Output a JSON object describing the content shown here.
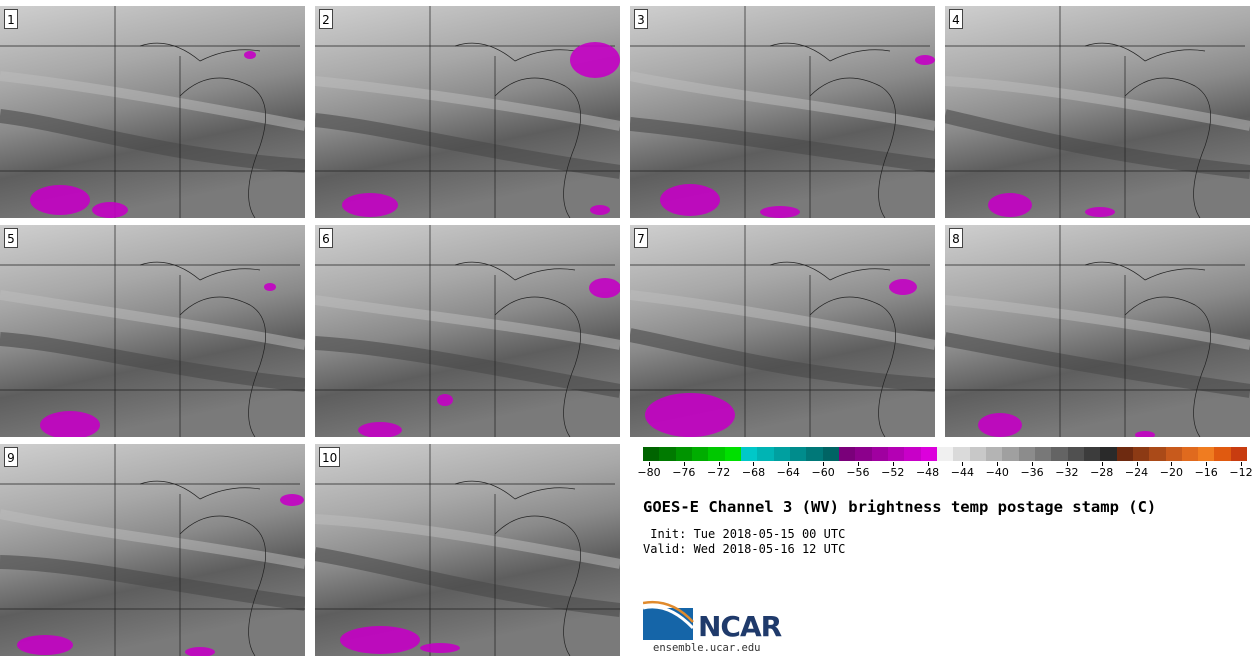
{
  "panels": [
    {
      "label": "1"
    },
    {
      "label": "2"
    },
    {
      "label": "3"
    },
    {
      "label": "4"
    },
    {
      "label": "5"
    },
    {
      "label": "6"
    },
    {
      "label": "7"
    },
    {
      "label": "8"
    },
    {
      "label": "9"
    },
    {
      "label": "10"
    }
  ],
  "colorbar": {
    "ticks": [
      "−80",
      "−76",
      "−72",
      "−68",
      "−64",
      "−60",
      "−56",
      "−52",
      "−48",
      "−44",
      "−40",
      "−36",
      "−32",
      "−28",
      "−24",
      "−20",
      "−16",
      "−12"
    ],
    "colors": [
      "#006400",
      "#007a00",
      "#009400",
      "#00ad00",
      "#00c800",
      "#00e000",
      "#00c8c8",
      "#00b4b4",
      "#00a0a0",
      "#008c8c",
      "#007878",
      "#006464",
      "#7a007a",
      "#8c008c",
      "#a000a0",
      "#b400b4",
      "#c800c8",
      "#dc00dc",
      "#f0f0f0",
      "#dadada",
      "#c8c8c8",
      "#b4b4b4",
      "#a0a0a0",
      "#8c8c8c",
      "#787878",
      "#646464",
      "#505050",
      "#3c3c3c",
      "#2a2a2a",
      "#6e2a10",
      "#8c3a14",
      "#aa4a18",
      "#c85a1c",
      "#e06a1e",
      "#f07c20",
      "#e05a10",
      "#c83c10"
    ]
  },
  "title": "GOES-E Channel 3 (WV) brightness temp postage stamp (C)",
  "init": " Init: Tue 2018-05-15 00 UTC",
  "valid": "Valid: Wed 2018-05-16 12 UTC",
  "logo": {
    "text": "NCAR",
    "site": "ensemble.ucar.edu"
  }
}
